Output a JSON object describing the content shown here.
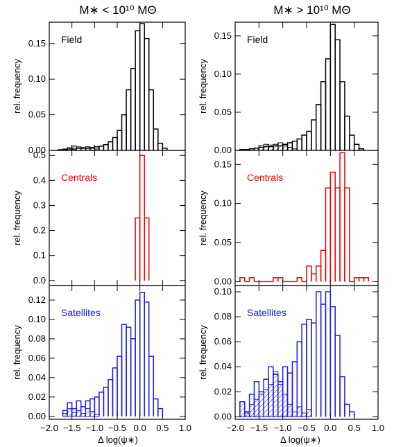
{
  "figure": {
    "column_titles": [
      "M∗ < 10¹⁰ MΘ",
      "M∗ > 10¹⁰ MΘ"
    ],
    "ylabel": "rel. frequency",
    "xlabel": "Δ log(ψ∗)"
  },
  "chart_data": [
    {
      "type": "bar",
      "id": "low-field",
      "label": "Field",
      "color": "#000000",
      "xlim": [
        -2.0,
        1.0
      ],
      "ylim": [
        0,
        0.18
      ],
      "yticks": [
        0.0,
        0.05,
        0.1,
        0.15
      ],
      "ytick_format": 2,
      "xticks": [
        -2.0,
        -1.5,
        -1.0,
        -0.5,
        0.0,
        0.5,
        1.0
      ],
      "xtick_labels": [],
      "grid": false,
      "bin_width": 0.1,
      "series": [
        {
          "role": "outline",
          "bins": [
            -1.8,
            -1.7,
            -1.6,
            -1.5,
            -1.4,
            -1.3,
            -1.2,
            -1.1,
            -1.0,
            -0.9,
            -0.8,
            -0.7,
            -0.6,
            -0.5,
            -0.4,
            -0.3,
            -0.2,
            -0.1,
            0.0,
            0.1,
            0.2,
            0.3,
            0.4,
            0.5
          ],
          "values": [
            0.001,
            0.001,
            0.002,
            0.002,
            0.003,
            0.003,
            0.003,
            0.004,
            0.005,
            0.006,
            0.008,
            0.012,
            0.018,
            0.028,
            0.05,
            0.085,
            0.115,
            0.168,
            0.178,
            0.157,
            0.085,
            0.03,
            0.01,
            0.003
          ]
        },
        {
          "role": "hatched",
          "bins": [
            -1.7,
            -1.6,
            -1.5,
            -1.4,
            -1.3,
            -1.2,
            -1.1,
            -1.0
          ],
          "values": [
            0.002,
            0.004,
            0.006,
            0.005,
            0.004,
            0.005,
            0.003,
            0.002
          ]
        }
      ]
    },
    {
      "type": "bar",
      "id": "high-field",
      "label": "Field",
      "color": "#000000",
      "xlim": [
        -2.0,
        1.0
      ],
      "ylim": [
        0,
        0.168
      ],
      "yticks": [
        0.0,
        0.05,
        0.1,
        0.15
      ],
      "ytick_format": 2,
      "xticks": [
        -2.0,
        -1.5,
        -1.0,
        -0.5,
        0.0,
        0.5,
        1.0
      ],
      "xtick_labels": [],
      "grid": false,
      "bin_width": 0.1,
      "series": [
        {
          "role": "outline",
          "bins": [
            -1.9,
            -1.8,
            -1.7,
            -1.6,
            -1.5,
            -1.4,
            -1.3,
            -1.2,
            -1.1,
            -1.0,
            -0.9,
            -0.8,
            -0.7,
            -0.6,
            -0.5,
            -0.4,
            -0.3,
            -0.2,
            -0.1,
            0.0,
            0.1,
            0.2,
            0.3,
            0.4,
            0.5,
            0.6
          ],
          "values": [
            0.001,
            0.001,
            0.002,
            0.003,
            0.004,
            0.005,
            0.005,
            0.006,
            0.006,
            0.008,
            0.01,
            0.012,
            0.015,
            0.02,
            0.025,
            0.04,
            0.06,
            0.09,
            0.12,
            0.165,
            0.145,
            0.09,
            0.045,
            0.02,
            0.008,
            0.002
          ]
        },
        {
          "role": "hatched",
          "bins": [
            -1.6,
            -1.5,
            -1.4,
            -1.3,
            -1.2,
            -1.1,
            -1.0,
            -0.9,
            -0.8
          ],
          "values": [
            0.003,
            0.006,
            0.008,
            0.007,
            0.008,
            0.01,
            0.006,
            0.004,
            0.002
          ]
        }
      ]
    },
    {
      "type": "bar",
      "id": "low-centrals",
      "label": "Centrals",
      "color": "#ee0000",
      "xlim": [
        -2.0,
        1.0
      ],
      "ylim": [
        -0.02,
        0.52
      ],
      "yticks": [
        0.0,
        0.1,
        0.2,
        0.3,
        0.4,
        0.5
      ],
      "ytick_format": 1,
      "xticks": [
        -2.0,
        -1.5,
        -1.0,
        -0.5,
        0.0,
        0.5,
        1.0
      ],
      "xtick_labels": [],
      "grid": false,
      "bin_width": 0.1,
      "series": [
        {
          "role": "outline",
          "bins": [
            -0.1,
            0.0,
            0.1
          ],
          "values": [
            0.25,
            0.5,
            0.25
          ]
        }
      ]
    },
    {
      "type": "bar",
      "id": "high-centrals",
      "label": "Centrals",
      "color": "#ee0000",
      "xlim": [
        -2.0,
        1.0
      ],
      "ylim": [
        -0.005,
        0.168
      ],
      "yticks": [
        0.0,
        0.05,
        0.1,
        0.15
      ],
      "ytick_format": 2,
      "xticks": [
        -2.0,
        -1.5,
        -1.0,
        -0.5,
        0.0,
        0.5,
        1.0
      ],
      "xtick_labels": [],
      "grid": false,
      "bin_width": 0.1,
      "series": [
        {
          "role": "outline",
          "bins": [
            -1.9,
            -1.8,
            -1.7,
            -1.6,
            -1.5,
            -1.4,
            -1.3,
            -1.2,
            -1.1,
            -1.0,
            -0.9,
            -0.8,
            -0.7,
            -0.6,
            -0.5,
            -0.4,
            -0.3,
            -0.2,
            -0.1,
            0.0,
            0.1,
            0.2,
            0.3,
            0.4,
            0.5,
            0.6,
            0.7
          ],
          "values": [
            0.005,
            0.0,
            0.005,
            0.0,
            0.0,
            0.0,
            0.0,
            0.005,
            0.005,
            0.0,
            0.0,
            0.0,
            0.005,
            0.0,
            0.02,
            0.01,
            0.02,
            0.04,
            0.12,
            0.14,
            0.12,
            0.165,
            0.12,
            0.0,
            0.005,
            0.005,
            0.005
          ]
        }
      ]
    },
    {
      "type": "bar",
      "id": "low-satellites",
      "label": "Satellites",
      "color": "#1a1ae6",
      "xlim": [
        -2.0,
        1.0
      ],
      "ylim": [
        -0.003,
        0.135
      ],
      "yticks": [
        0.0,
        0.02,
        0.04,
        0.06,
        0.08,
        0.1,
        0.12
      ],
      "ytick_format": 2,
      "xticks": [
        -2.0,
        -1.5,
        -1.0,
        -0.5,
        0.0,
        0.5,
        1.0
      ],
      "xtick_labels": [
        "−2.0",
        "−1.5",
        "−1.0",
        "−0.5",
        "0.0",
        "0.5",
        "1.0"
      ],
      "grid": false,
      "bin_width": 0.1,
      "series": [
        {
          "role": "outline",
          "bins": [
            -1.7,
            -1.6,
            -1.5,
            -1.4,
            -1.3,
            -1.2,
            -1.1,
            -1.0,
            -0.9,
            -0.8,
            -0.7,
            -0.6,
            -0.5,
            -0.4,
            -0.3,
            -0.2,
            -0.1,
            0.0,
            0.1,
            0.2,
            0.3,
            0.4
          ],
          "values": [
            0.006,
            0.014,
            0.008,
            0.016,
            0.01,
            0.016,
            0.018,
            0.02,
            0.025,
            0.03,
            0.038,
            0.05,
            0.062,
            0.095,
            0.092,
            0.08,
            0.12,
            0.128,
            0.118,
            0.062,
            0.018,
            0.008
          ]
        },
        {
          "role": "hatched",
          "bins": [
            -1.7,
            -1.6,
            -1.5,
            -1.4,
            -1.3,
            -1.2,
            -1.1,
            -1.0
          ],
          "values": [
            0.003,
            0.008,
            0.004,
            0.006,
            0.003,
            0.008,
            0.005,
            0.002
          ]
        }
      ]
    },
    {
      "type": "bar",
      "id": "high-satellites",
      "label": "Satellites",
      "color": "#1a1ae6",
      "xlim": [
        -2.0,
        1.0
      ],
      "ylim": [
        -0.002,
        0.105
      ],
      "yticks": [
        0.0,
        0.02,
        0.04,
        0.06,
        0.08,
        0.1
      ],
      "ytick_format": 2,
      "xticks": [
        -2.0,
        -1.5,
        -1.0,
        -0.5,
        0.0,
        0.5,
        1.0
      ],
      "xtick_labels": [
        "−2.0",
        "−1.5",
        "−1.0",
        "−0.5",
        "0.0",
        "0.5",
        "1.0"
      ],
      "grid": false,
      "bin_width": 0.1,
      "series": [
        {
          "role": "outline",
          "bins": [
            -1.9,
            -1.8,
            -1.7,
            -1.6,
            -1.5,
            -1.4,
            -1.3,
            -1.2,
            -1.1,
            -1.0,
            -0.9,
            -0.8,
            -0.7,
            -0.6,
            -0.5,
            -0.4,
            -0.3,
            -0.2,
            -0.1,
            0.0,
            0.1,
            0.2,
            0.3,
            0.4
          ],
          "values": [
            0.012,
            0.004,
            0.018,
            0.028,
            0.02,
            0.03,
            0.04,
            0.034,
            0.028,
            0.04,
            0.035,
            0.044,
            0.06,
            0.074,
            0.078,
            0.075,
            0.1,
            0.09,
            0.1,
            0.088,
            0.065,
            0.032,
            0.01,
            0.004
          ]
        },
        {
          "role": "hatched",
          "bins": [
            -1.9,
            -1.8,
            -1.7,
            -1.6,
            -1.5,
            -1.4,
            -1.3,
            -1.2,
            -1.1,
            -1.0,
            -0.9,
            -0.8,
            -0.7,
            -0.6,
            -0.5
          ],
          "values": [
            0.012,
            0.003,
            0.01,
            0.014,
            0.018,
            0.022,
            0.026,
            0.036,
            0.026,
            0.018,
            0.01,
            0.004,
            0.008,
            0.003,
            0.006
          ]
        }
      ]
    }
  ]
}
